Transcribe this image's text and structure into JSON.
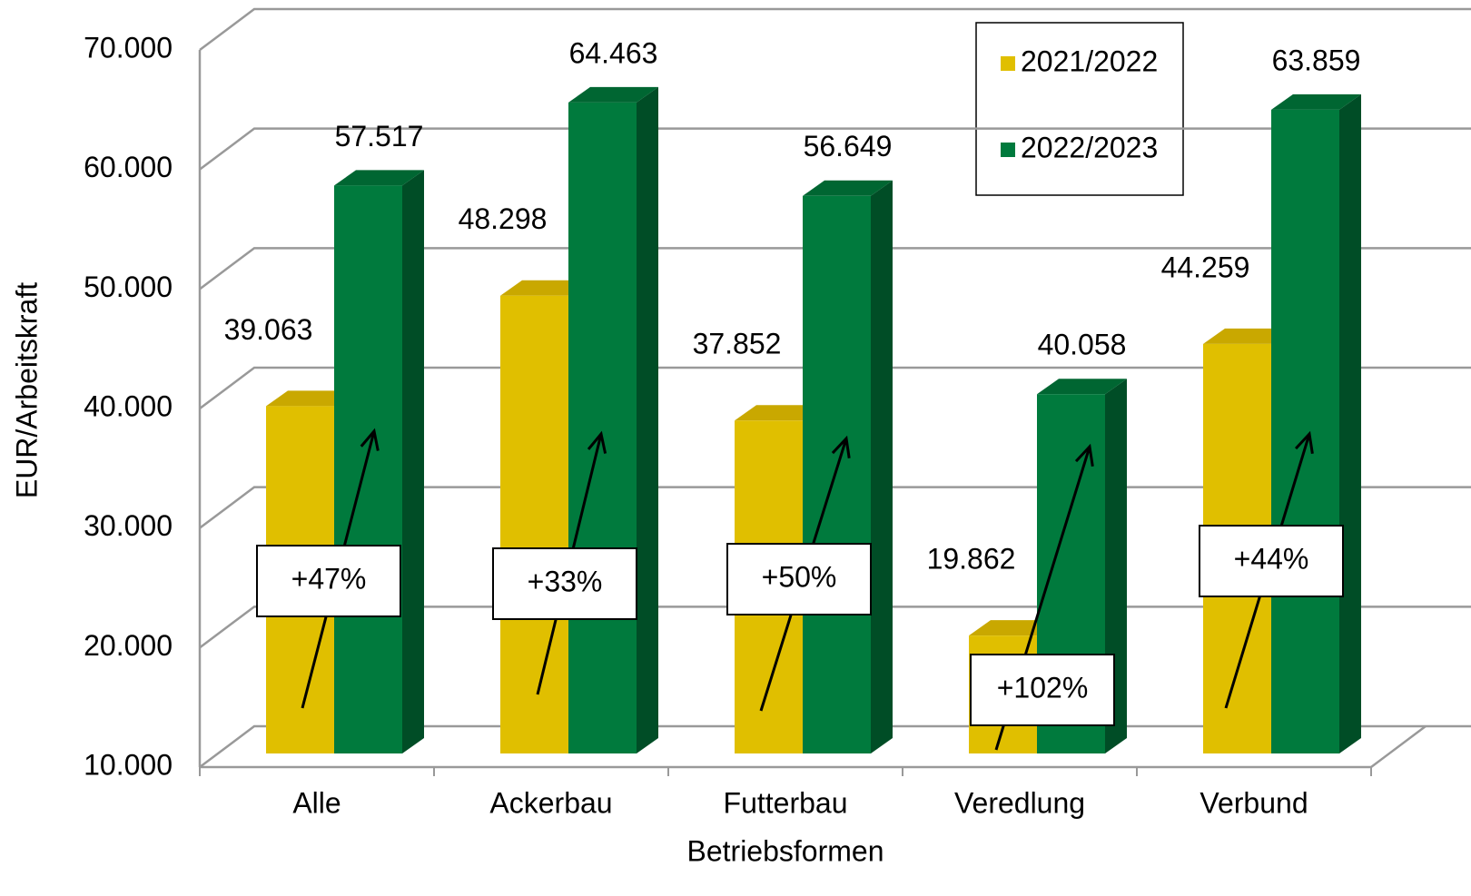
{
  "chart_data": {
    "type": "bar3d",
    "categories": [
      "Alle",
      "Ackerbau",
      "Futterbau",
      "Veredlung",
      "Verbund"
    ],
    "series": [
      {
        "name": "2021/2022",
        "color": "#e0bf00",
        "values": [
          39063,
          48298,
          37852,
          19862,
          44259
        ],
        "value_labels": [
          "39.063",
          "48.298",
          "37.852",
          "19.862",
          "44.259"
        ]
      },
      {
        "name": "2022/2023",
        "color": "#007a3d",
        "values": [
          57517,
          64463,
          56649,
          40058,
          63859
        ],
        "value_labels": [
          "57.517",
          "64.463",
          "56.649",
          "40.058",
          "63.859"
        ]
      }
    ],
    "ylim": [
      10000,
      70000
    ],
    "yticks": [
      {
        "value": 10000,
        "label": "10.000"
      },
      {
        "value": 20000,
        "label": "20.000"
      },
      {
        "value": 30000,
        "label": "30.000"
      },
      {
        "value": 40000,
        "label": "40.000"
      },
      {
        "value": 50000,
        "label": "50.000"
      },
      {
        "value": 60000,
        "label": "60.000"
      },
      {
        "value": 70000,
        "label": "70.000"
      }
    ],
    "grid": true,
    "x_label": "Betriebsformen",
    "y_label": "EUR/Arbeitskraft",
    "annotations": [
      "+47%",
      "+33%",
      "+50%",
      "+102%",
      "+44%"
    ]
  }
}
